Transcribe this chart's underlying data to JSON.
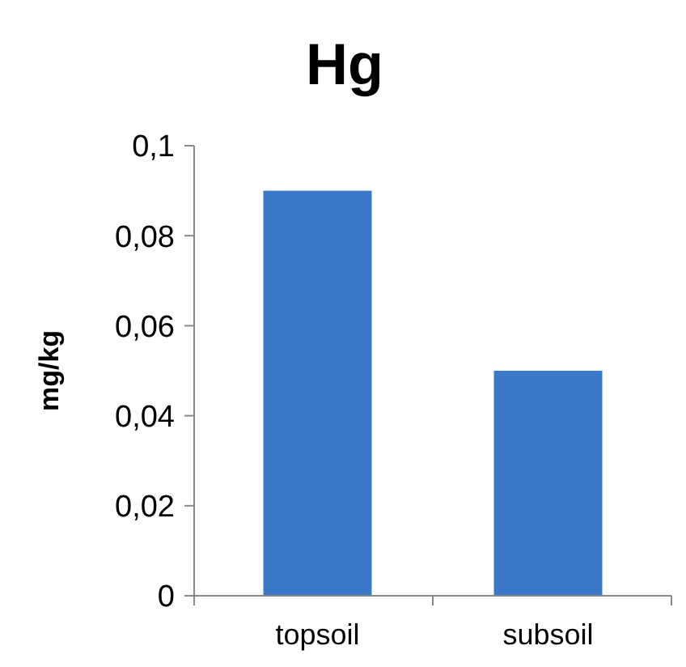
{
  "chart_data": {
    "type": "bar",
    "title": "Hg",
    "ylabel": "mg/kg",
    "categories": [
      "topsoil",
      "subsoil"
    ],
    "values": [
      0.09,
      0.05
    ],
    "color": "#3a78c8",
    "ylim": [
      0,
      0.1
    ],
    "yticks": [
      0,
      {
        "value": 0.02,
        "label": "0,02"
      },
      {
        "value": 0.04,
        "label": "0,04"
      },
      {
        "value": 0.06,
        "label": "0,06"
      },
      {
        "value": 0.08,
        "label": "0,08"
      },
      {
        "value": 0.1,
        "label": "0,1"
      }
    ],
    "grid": false
  }
}
